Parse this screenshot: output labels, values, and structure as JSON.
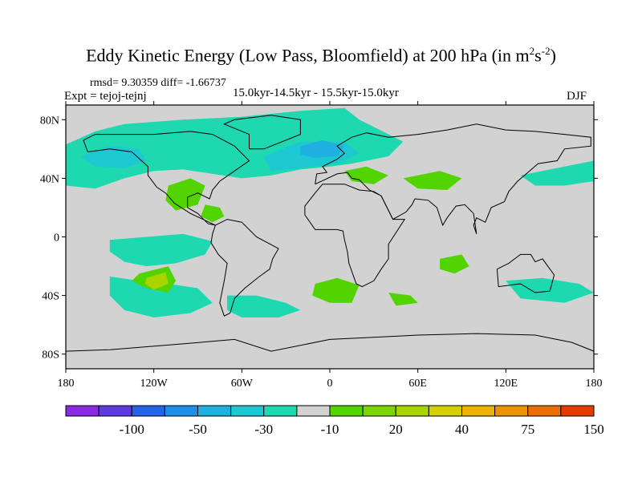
{
  "title": {
    "main": "Eddy Kinetic Energy (Low Pass, Bloomfield) at 200 hPa (in m",
    "sup1": "2",
    "mid": "s",
    "sup2": "-2",
    "end": ")"
  },
  "stats": "rmsd= 9.30359 diff= -1.66737",
  "experiment": "Expt = tejoj-tejnj",
  "period": "15.0kyr-14.5kyr - 15.5kyr-15.0kyr",
  "season": "DJF",
  "chart_data": {
    "type": "heatmap",
    "projection": "cylindrical-equidistant global map",
    "x_ticks": [
      "180",
      "120W",
      "60W",
      "0",
      "60E",
      "120E",
      "180"
    ],
    "y_ticks": [
      "80N",
      "40N",
      "0",
      "40S",
      "80S"
    ],
    "x_tick_lon": [
      -180,
      -120,
      -60,
      0,
      60,
      120,
      180
    ],
    "y_tick_lat": [
      80,
      40,
      0,
      -40,
      -80
    ],
    "lat_range": [
      -90,
      90
    ],
    "lon_range": [
      -180,
      180
    ],
    "background_color": "#d2d2d2",
    "colorbar": {
      "colors": [
        "#8a2be2",
        "#5c3ce0",
        "#2563e8",
        "#1e8fe8",
        "#1eb0e0",
        "#1ec8d2",
        "#1ed8b0",
        "#d2d2d2",
        "#52d400",
        "#7cd400",
        "#a8d400",
        "#d4d000",
        "#ecb400",
        "#ec9400",
        "#ec6e00",
        "#e43c00"
      ],
      "labels": [
        "-100",
        "-50",
        "-30",
        "-10",
        "20",
        "40",
        "75",
        "150"
      ]
    },
    "regions": [
      {
        "name": "north-pacific",
        "level": -10,
        "color": "#1ed8b0",
        "pts": [
          [
            -180,
            63
          ],
          [
            -160,
            72
          ],
          [
            -140,
            77
          ],
          [
            -100,
            80
          ],
          [
            -60,
            82
          ],
          [
            -20,
            86
          ],
          [
            10,
            88
          ],
          [
            20,
            80
          ],
          [
            50,
            65
          ],
          [
            40,
            55
          ],
          [
            15,
            50
          ],
          [
            0,
            48
          ],
          [
            -20,
            46
          ],
          [
            -40,
            42
          ],
          [
            -60,
            40
          ],
          [
            -80,
            43
          ],
          [
            -100,
            46
          ],
          [
            -120,
            45
          ],
          [
            -140,
            40
          ],
          [
            -160,
            33
          ],
          [
            -180,
            35
          ]
        ]
      },
      {
        "name": "atlantic-core",
        "level": -30,
        "color": "#1ec8d2",
        "pts": [
          [
            -45,
            55
          ],
          [
            -20,
            65
          ],
          [
            10,
            65
          ],
          [
            20,
            57
          ],
          [
            5,
            50
          ],
          [
            -20,
            47
          ],
          [
            -40,
            45
          ]
        ]
      },
      {
        "name": "atlantic-inner",
        "level": -50,
        "color": "#1eb0e0",
        "pts": [
          [
            -20,
            62
          ],
          [
            -5,
            66
          ],
          [
            10,
            62
          ],
          [
            5,
            55
          ],
          [
            -10,
            54
          ],
          [
            -20,
            56
          ]
        ]
      },
      {
        "name": "north-pacific-core",
        "level": -30,
        "color": "#1ec8d2",
        "pts": [
          [
            -170,
            55
          ],
          [
            -150,
            62
          ],
          [
            -130,
            60
          ],
          [
            -125,
            52
          ],
          [
            -140,
            47
          ],
          [
            -160,
            48
          ]
        ]
      },
      {
        "name": "east-pacific-tropical",
        "level": -10,
        "color": "#1ed8b0",
        "pts": [
          [
            -150,
            -2
          ],
          [
            -125,
            0
          ],
          [
            -100,
            2
          ],
          [
            -80,
            -3
          ],
          [
            -85,
            -12
          ],
          [
            -105,
            -18
          ],
          [
            -125,
            -20
          ],
          [
            -140,
            -17
          ],
          [
            -150,
            -10
          ]
        ]
      },
      {
        "name": "south-pacific",
        "level": -10,
        "color": "#1ed8b0",
        "pts": [
          [
            -150,
            -27
          ],
          [
            -130,
            -30
          ],
          [
            -110,
            -32
          ],
          [
            -90,
            -35
          ],
          [
            -80,
            -45
          ],
          [
            -95,
            -52
          ],
          [
            -120,
            -55
          ],
          [
            -140,
            -50
          ],
          [
            -150,
            -40
          ]
        ]
      },
      {
        "name": "south-atlantic",
        "level": -10,
        "color": "#1ed8b0",
        "pts": [
          [
            -70,
            -40
          ],
          [
            -50,
            -40
          ],
          [
            -30,
            -45
          ],
          [
            -20,
            -50
          ],
          [
            -35,
            -55
          ],
          [
            -60,
            -55
          ],
          [
            -70,
            -50
          ]
        ]
      },
      {
        "name": "south-pacific-pos",
        "level": 20,
        "color": "#52d400",
        "pts": [
          [
            -130,
            -25
          ],
          [
            -110,
            -20
          ],
          [
            -105,
            -30
          ],
          [
            -110,
            -38
          ],
          [
            -125,
            -35
          ],
          [
            -135,
            -30
          ]
        ]
      },
      {
        "name": "south-pacific-pos2",
        "level": 40,
        "color": "#a8d400",
        "pts": [
          [
            -125,
            -28
          ],
          [
            -112,
            -24
          ],
          [
            -110,
            -32
          ],
          [
            -120,
            -36
          ],
          [
            -126,
            -32
          ]
        ]
      },
      {
        "name": "gulf-mexico-pos",
        "level": 20,
        "color": "#52d400",
        "pts": [
          [
            -110,
            35
          ],
          [
            -95,
            40
          ],
          [
            -85,
            35
          ],
          [
            -90,
            22
          ],
          [
            -105,
            18
          ],
          [
            -112,
            25
          ]
        ]
      },
      {
        "name": "caribbean-pos",
        "level": 20,
        "color": "#52d400",
        "pts": [
          [
            -85,
            22
          ],
          [
            -75,
            20
          ],
          [
            -72,
            14
          ],
          [
            -80,
            10
          ],
          [
            -88,
            14
          ]
        ]
      },
      {
        "name": "mediterranean-pos",
        "level": 20,
        "color": "#52d400",
        "pts": [
          [
            10,
            45
          ],
          [
            25,
            48
          ],
          [
            40,
            42
          ],
          [
            30,
            36
          ],
          [
            15,
            38
          ]
        ]
      },
      {
        "name": "central-asia-pos",
        "level": 20,
        "color": "#52d400",
        "pts": [
          [
            50,
            40
          ],
          [
            75,
            45
          ],
          [
            90,
            40
          ],
          [
            80,
            32
          ],
          [
            60,
            33
          ]
        ]
      },
      {
        "name": "south-indian-pos",
        "level": 20,
        "color": "#52d400",
        "pts": [
          [
            -10,
            -32
          ],
          [
            5,
            -28
          ],
          [
            20,
            -33
          ],
          [
            15,
            -45
          ],
          [
            0,
            -45
          ],
          [
            -12,
            -40
          ]
        ]
      },
      {
        "name": "south-indian-pos2",
        "level": 20,
        "color": "#52d400",
        "pts": [
          [
            40,
            -38
          ],
          [
            55,
            -40
          ],
          [
            60,
            -45
          ],
          [
            45,
            -47
          ]
        ]
      },
      {
        "name": "indian-ocean-pos",
        "level": 20,
        "color": "#52d400",
        "pts": [
          [
            75,
            -15
          ],
          [
            90,
            -12
          ],
          [
            95,
            -20
          ],
          [
            85,
            -25
          ],
          [
            75,
            -22
          ]
        ]
      },
      {
        "name": "australia-south",
        "level": -10,
        "color": "#1ed8b0",
        "pts": [
          [
            120,
            -30
          ],
          [
            145,
            -28
          ],
          [
            170,
            -32
          ],
          [
            180,
            -38
          ],
          [
            160,
            -45
          ],
          [
            130,
            -42
          ]
        ]
      },
      {
        "name": "japan-pacific",
        "level": -10,
        "color": "#1ed8b0",
        "pts": [
          [
            130,
            42
          ],
          [
            160,
            48
          ],
          [
            180,
            52
          ],
          [
            180,
            38
          ],
          [
            160,
            35
          ],
          [
            140,
            35
          ]
        ]
      }
    ]
  }
}
